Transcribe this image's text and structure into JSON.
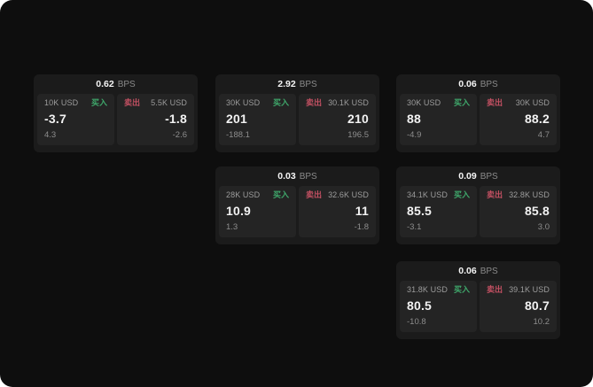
{
  "labels": {
    "bps_unit": "BPS",
    "buy": "买入",
    "sell": "卖出"
  },
  "colors": {
    "bg": "#0e0e0e",
    "card": "#1b1b1b",
    "panel": "#242424",
    "buy": "#3fa86b",
    "sell": "#c25062"
  },
  "cards": [
    {
      "bps": "0.62",
      "buy": {
        "amount": "10K USD",
        "value": "-3.7",
        "sub": "4.3"
      },
      "sell": {
        "amount": "5.5K USD",
        "value": "-1.8",
        "sub": "-2.6"
      }
    },
    {
      "bps": "2.92",
      "buy": {
        "amount": "30K USD",
        "value": "201",
        "sub": "-188.1"
      },
      "sell": {
        "amount": "30.1K USD",
        "value": "210",
        "sub": "196.5"
      }
    },
    {
      "bps": "0.06",
      "buy": {
        "amount": "30K USD",
        "value": "88",
        "sub": "-4.9"
      },
      "sell": {
        "amount": "30K USD",
        "value": "88.2",
        "sub": "4.7"
      }
    },
    {
      "bps": "0.03",
      "buy": {
        "amount": "28K USD",
        "value": "10.9",
        "sub": "1.3"
      },
      "sell": {
        "amount": "32.6K USD",
        "value": "11",
        "sub": "-1.8"
      }
    },
    {
      "bps": "0.09",
      "buy": {
        "amount": "34.1K USD",
        "value": "85.5",
        "sub": "-3.1"
      },
      "sell": {
        "amount": "32.8K USD",
        "value": "85.8",
        "sub": "3.0"
      }
    },
    {
      "bps": "0.06",
      "buy": {
        "amount": "31.8K USD",
        "value": "80.5",
        "sub": "-10.8"
      },
      "sell": {
        "amount": "39.1K USD",
        "value": "80.7",
        "sub": "10.2"
      }
    }
  ]
}
